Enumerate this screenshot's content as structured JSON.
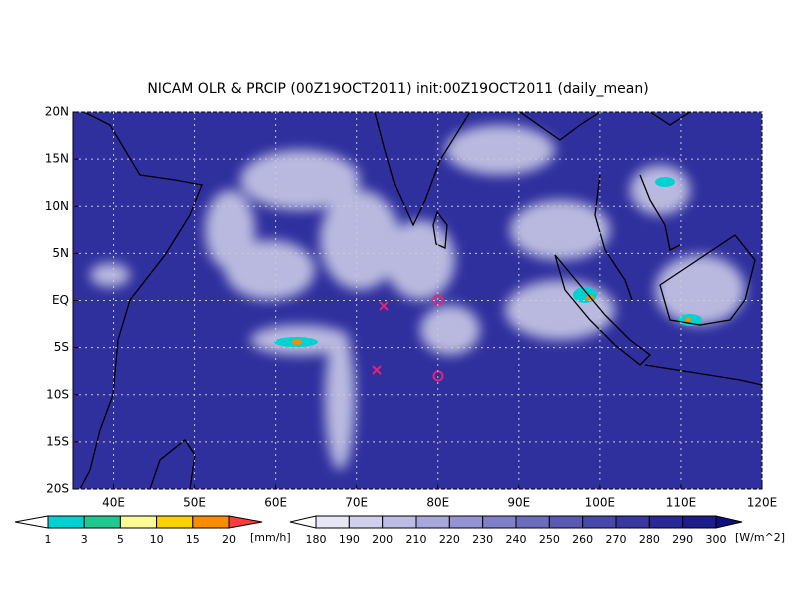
{
  "title": "NICAM OLR & PRCIP (00Z19OCT2011) init:00Z19OCT2011 (daily_mean)",
  "map": {
    "lonlim": [
      35,
      120
    ],
    "latlim": [
      -20,
      20
    ],
    "lon_ticks": [
      {
        "value": 40,
        "label": "40E"
      },
      {
        "value": 50,
        "label": "50E"
      },
      {
        "value": 60,
        "label": "60E"
      },
      {
        "value": 70,
        "label": "70E"
      },
      {
        "value": 80,
        "label": "80E"
      },
      {
        "value": 90,
        "label": "90E"
      },
      {
        "value": 100,
        "label": "100E"
      },
      {
        "value": 110,
        "label": "110E"
      },
      {
        "value": 120,
        "label": "120E"
      }
    ],
    "lat_ticks": [
      {
        "value": 20,
        "label": "20N"
      },
      {
        "value": 15,
        "label": "15N"
      },
      {
        "value": 10,
        "label": "10N"
      },
      {
        "value": 5,
        "label": "5N"
      },
      {
        "value": 0,
        "label": "EQ"
      },
      {
        "value": -5,
        "label": "5S"
      },
      {
        "value": -10,
        "label": "10S"
      },
      {
        "value": -15,
        "label": "15S"
      },
      {
        "value": -20,
        "label": "20S"
      }
    ],
    "background": "#2f2f9e"
  },
  "precip_colorbar": {
    "levels": [
      1,
      3,
      5,
      10,
      15,
      20
    ],
    "unit": "[mm/h]",
    "colors": [
      "#ffffff",
      "#00d2d2",
      "#20c890",
      "#fafa96",
      "#fad200",
      "#fa8c00",
      "#fa3c3c"
    ]
  },
  "olr_colorbar": {
    "levels": [
      180,
      190,
      200,
      210,
      220,
      230,
      240,
      250,
      260,
      270,
      280,
      290,
      300
    ],
    "unit": "[W/m^2]",
    "colors": [
      "#ffffff",
      "#e6e6f4",
      "#d0d0ec",
      "#bcbce4",
      "#a8a8dc",
      "#9494d2",
      "#8080c8",
      "#6c6cbe",
      "#5a5ab4",
      "#4848aa",
      "#3838a0",
      "#282896",
      "#1c1c8a",
      "#10107c"
    ]
  }
}
